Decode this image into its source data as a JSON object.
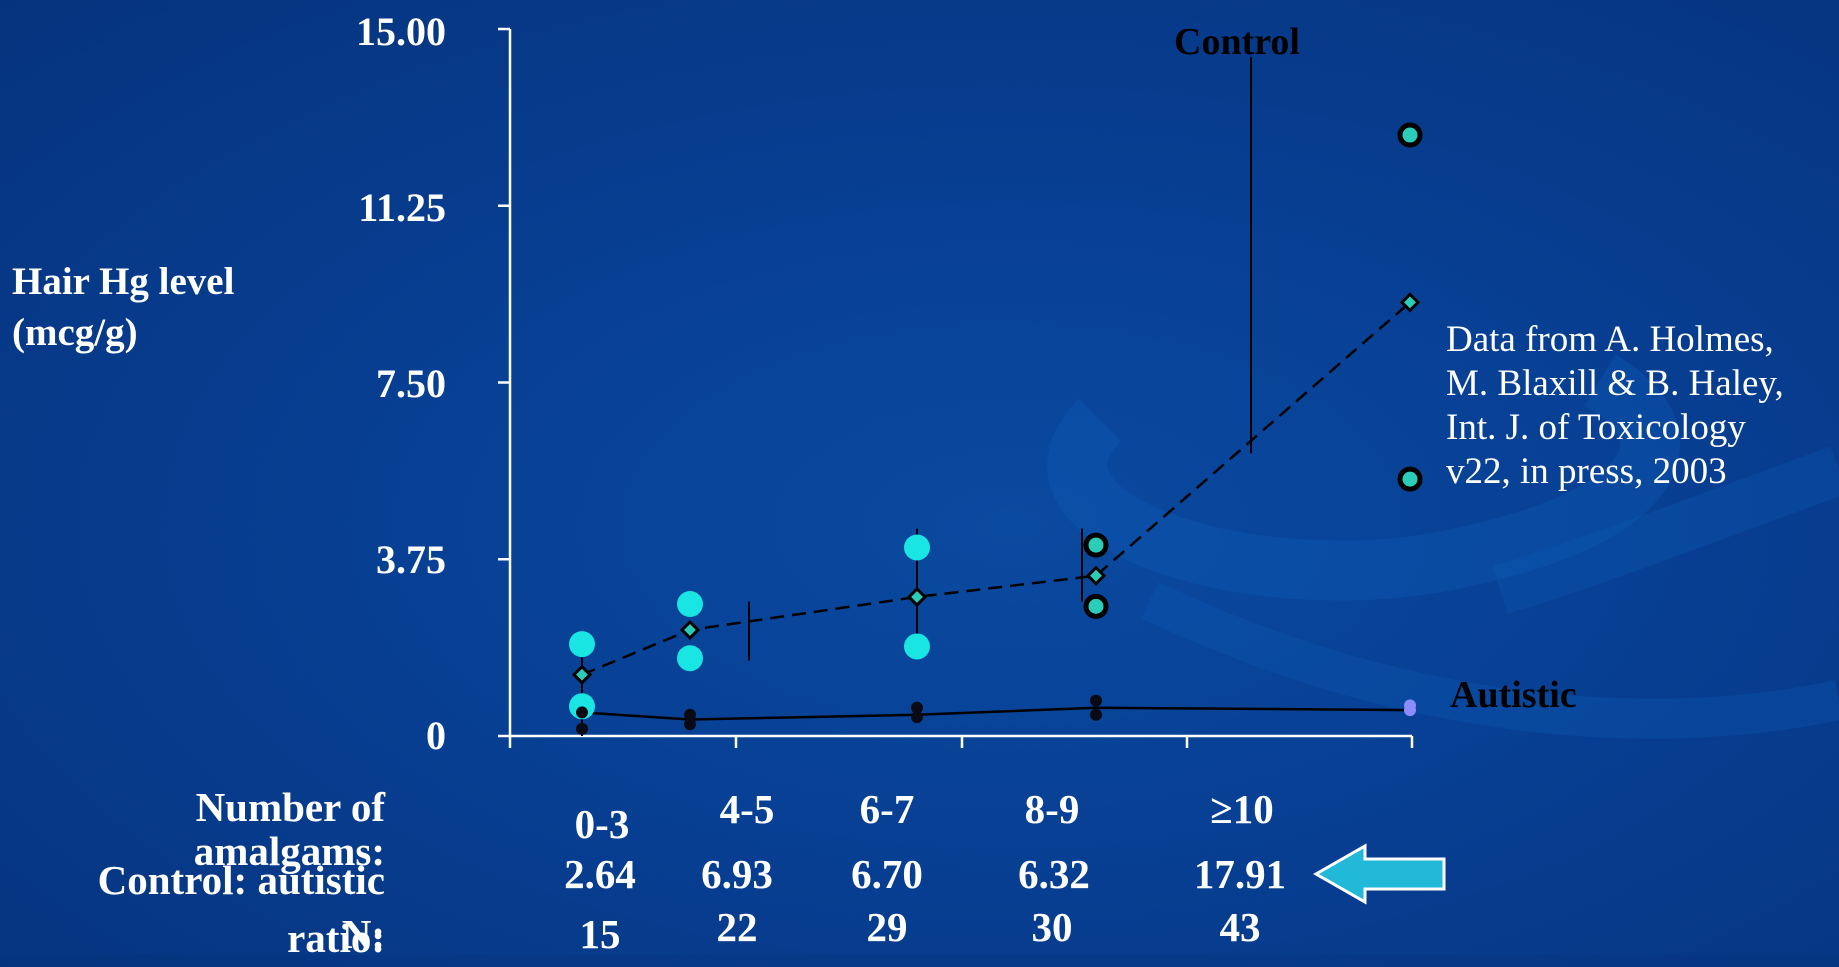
{
  "chart_data": {
    "type": "scatter",
    "ylabel": "Hair Hg level\n(mcg/g)",
    "yticks": [
      "15.00",
      "11.25",
      "7.50",
      "3.75",
      "0"
    ],
    "ylim": [
      0,
      15
    ],
    "categories": [
      "0-3",
      "4-5",
      "6-7",
      "8-9",
      "≥10"
    ],
    "series": [
      {
        "name": "Control",
        "means": [
          1.3,
          2.25,
          2.95,
          3.4,
          9.2
        ],
        "points": [
          [
            1.95,
            0.63
          ],
          [
            2.8,
            1.65
          ],
          [
            4.0,
            1.9
          ],
          [
            4.05,
            2.75
          ],
          [
            12.75,
            5.45
          ]
        ]
      },
      {
        "name": "Autistic",
        "means": [
          0.5,
          0.35,
          0.45,
          0.6,
          0.55
        ],
        "points": [
          [
            0.5,
            0.15
          ],
          [
            0.45,
            0.25
          ],
          [
            0.6,
            0.4
          ],
          [
            0.75,
            0.45
          ],
          [
            0.65,
            0.55
          ]
        ]
      }
    ],
    "errorbars": [
      {
        "x": 0,
        "y1": 0,
        "y2": 1.9
      },
      {
        "x": 1,
        "y1": 1.6,
        "y2": 2.85
      },
      {
        "x": 2,
        "y1": 1.95,
        "y2": 4.4
      },
      {
        "x": 3,
        "y1": 2.85,
        "y2": 4.4
      },
      {
        "x": 4,
        "y1": 6.0,
        "y2": 14.4
      }
    ],
    "annotations": {
      "control": "Control",
      "autistic": "Autistic",
      "source": "Data from A. Holmes,\nM. Blaxill & B. Haley,\nInt. J. of Toxicology\nv22, in press, 2003"
    }
  },
  "table": {
    "rows": [
      {
        "label": "Number of\namalgams:",
        "values": [
          "0-3",
          "4-5",
          "6-7",
          "8-9",
          "≥10"
        ]
      },
      {
        "label": "Control: autistic\nratio:",
        "values": [
          "2.64",
          "6.93",
          "6.70",
          "6.32",
          "17.91"
        ]
      },
      {
        "label": "N:",
        "values": [
          "15",
          "22",
          "29",
          "30",
          "43"
        ]
      }
    ]
  },
  "colors": {
    "control_marker": "#19e6e3",
    "control_marker_ringed": "#2ccdb8",
    "autistic_marker": "#0a0a14",
    "autistic_last_marker": "#8a8cff",
    "arrow_fill": "#22b8d8",
    "axis": "#ffffff"
  }
}
